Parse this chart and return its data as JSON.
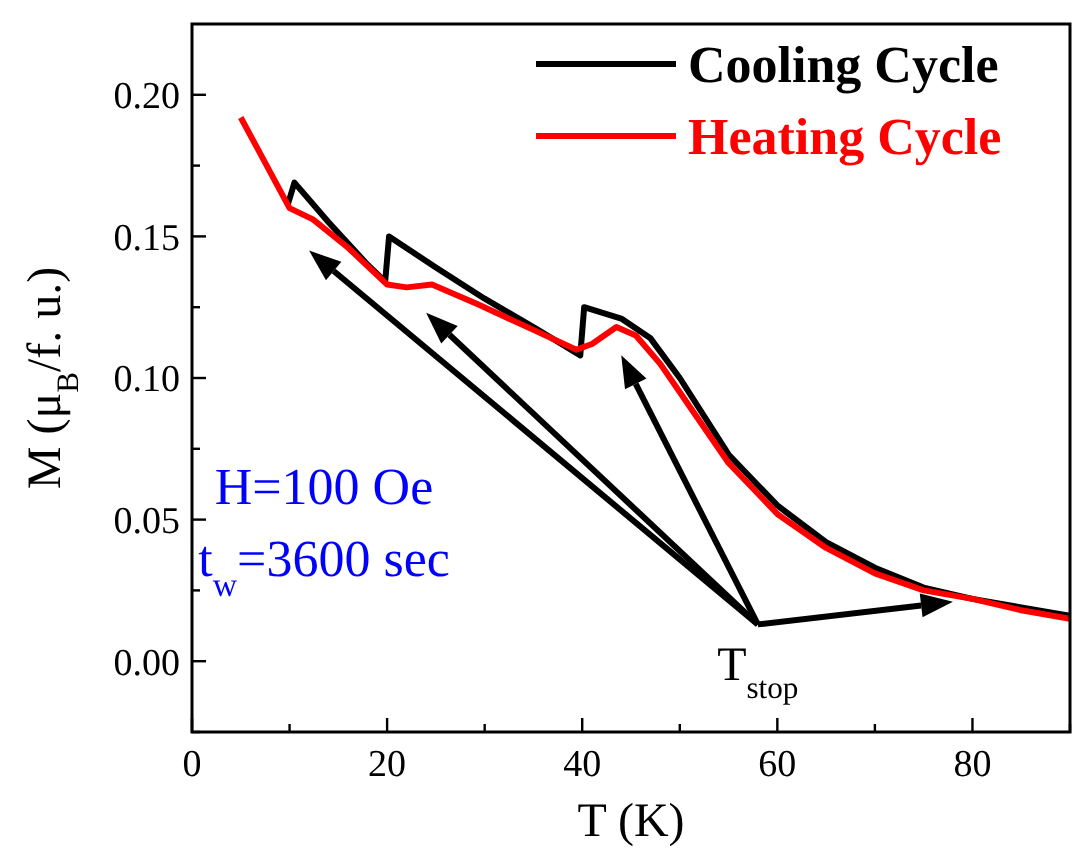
{
  "chart_data": {
    "type": "line",
    "xlabel": "T (K)",
    "ylabel": "M (μ$_{B}$/f. u.)",
    "xlim": [
      0,
      90
    ],
    "xticks": [
      0,
      {
        "value": 10,
        "label": null
      },
      20,
      {
        "value": 30,
        "label": null
      },
      40,
      {
        "value": 50,
        "label": null
      },
      60,
      {
        "value": 70,
        "label": null
      },
      80,
      {
        "value": 90,
        "label": null
      }
    ],
    "ylim": [
      -0.025,
      0.225
    ],
    "yticks": [
      {
        "value": -0.025,
        "label": null
      },
      {
        "value": 0,
        "label": "0.00"
      },
      {
        "value": 0.025,
        "label": null
      },
      {
        "value": 0.05,
        "label": "0.05"
      },
      {
        "value": 0.075,
        "label": null
      },
      {
        "value": 0.1,
        "label": "0.10"
      },
      {
        "value": 0.125,
        "label": null
      },
      {
        "value": 0.15,
        "label": "0.15"
      },
      {
        "value": 0.175,
        "label": null
      },
      {
        "value": 0.2,
        "label": "0.20"
      }
    ],
    "series": [
      {
        "name": "Cooling Cycle",
        "color": "#000000",
        "x": [
          9.8,
          10.5,
          14,
          18,
          19.8,
          20.2,
          25,
          30,
          35,
          39.8,
          40.2,
          44,
          47,
          50,
          55,
          60,
          65,
          70,
          75,
          80,
          85,
          90
        ],
        "values": [
          0.161,
          0.169,
          0.155,
          0.14,
          0.134,
          0.15,
          0.139,
          0.128,
          0.118,
          0.108,
          0.125,
          0.121,
          0.114,
          0.1,
          0.073,
          0.055,
          0.042,
          0.033,
          0.026,
          0.022,
          0.019,
          0.016
        ]
      },
      {
        "name": "Heating Cycle",
        "color": "#ff0000",
        "x": [
          5,
          10,
          12.4,
          16,
          20,
          22,
          24.6,
          29.3,
          35,
          39.4,
          41,
          43.5,
          45.5,
          48,
          52,
          55,
          60,
          65,
          70,
          75,
          80,
          85,
          90
        ],
        "values": [
          0.192,
          0.16,
          0.156,
          0.146,
          0.133,
          0.132,
          0.133,
          0.126,
          0.117,
          0.11,
          0.112,
          0.118,
          0.115,
          0.105,
          0.085,
          0.07,
          0.052,
          0.04,
          0.031,
          0.025,
          0.022,
          0.018,
          0.015
        ]
      }
    ],
    "annotations": [
      "H=100 Oe",
      "t$_{w}$=3600 sec",
      "T$_{stop}$"
    ],
    "legend": "top right",
    "marker": "none",
    "line_style": "solid",
    "grid": false
  }
}
